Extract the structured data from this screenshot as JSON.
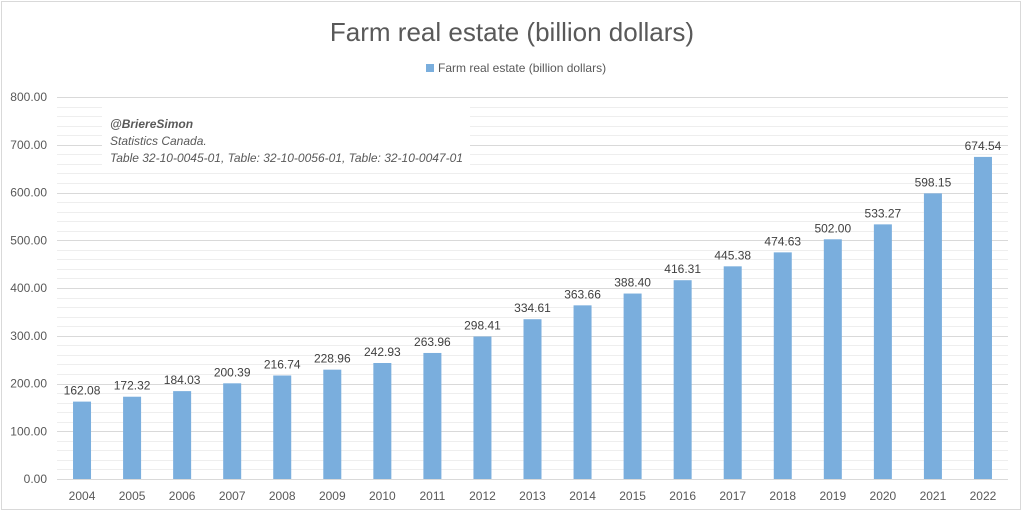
{
  "chart_data": {
    "type": "bar",
    "title": "Farm real estate (billion dollars)",
    "categories": [
      "2004",
      "2005",
      "2006",
      "2007",
      "2008",
      "2009",
      "2010",
      "2011",
      "2012",
      "2013",
      "2014",
      "2015",
      "2016",
      "2017",
      "2018",
      "2019",
      "2020",
      "2021",
      "2022"
    ],
    "series": [
      {
        "name": "Farm real estate (billion dollars)",
        "values": [
          162.08,
          172.32,
          184.03,
          200.39,
          216.74,
          228.96,
          242.93,
          263.96,
          298.41,
          334.61,
          363.66,
          388.4,
          416.31,
          445.38,
          474.63,
          502.0,
          533.27,
          598.15,
          674.54
        ],
        "labels": [
          "162.08",
          "172.32",
          "184.03",
          "200.39",
          "216.74",
          "228.96",
          "242.93",
          "263.96",
          "298.41",
          "334.61",
          "363.66",
          "388.40",
          "416.31",
          "445.38",
          "474.63",
          "502.00",
          "533.27",
          "598.15",
          "674.54"
        ],
        "color": "#7aaedd"
      }
    ],
    "ylim": [
      0,
      800
    ],
    "yticks": [
      "0.00",
      "100.00",
      "200.00",
      "300.00",
      "400.00",
      "500.00",
      "600.00",
      "700.00",
      "800.00"
    ],
    "xlabel": "",
    "ylabel": "",
    "legend_position": "top-center",
    "grid": true,
    "gridline_color": "#d9d9d9",
    "annotation": {
      "author": "@BriereSimon",
      "source_line1": "Statistics Canada.",
      "source_line2": "Table 32-10-0045-01, Table: 32-10-0056-01, Table: 32-10-0047-01"
    }
  }
}
